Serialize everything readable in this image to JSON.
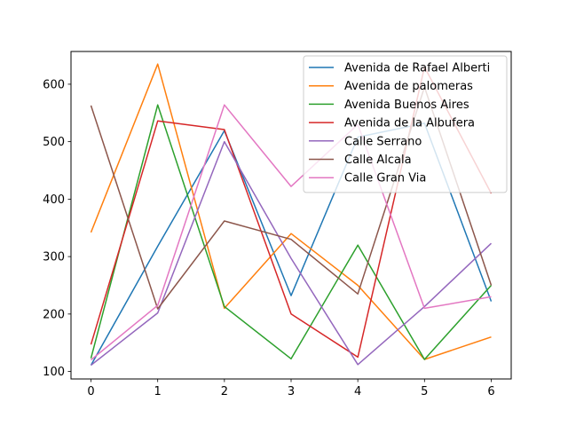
{
  "chart_data": {
    "type": "line",
    "title": "",
    "xlabel": "",
    "ylabel": "",
    "x": [
      0,
      1,
      2,
      3,
      4,
      5,
      6
    ],
    "xlim": [
      -0.3,
      6.3
    ],
    "ylim": [
      87,
      657
    ],
    "xticks": [
      0,
      1,
      2,
      3,
      4,
      5,
      6
    ],
    "yticks": [
      100,
      200,
      300,
      400,
      500,
      600
    ],
    "legend_position": "top-right",
    "grid": false,
    "series": [
      {
        "name": "Avenida de Rafael Alberti",
        "color": "#1f77b4",
        "values": [
          111,
          318,
          519,
          232,
          508,
          532,
          222
        ]
      },
      {
        "name": "Avenida de palomeras",
        "color": "#ff7f0e",
        "values": [
          342,
          635,
          210,
          340,
          250,
          121,
          160
        ]
      },
      {
        "name": "Avenida Buenos Aires",
        "color": "#2ca02c",
        "values": [
          123,
          564,
          213,
          122,
          320,
          121,
          250
        ]
      },
      {
        "name": "Avenida de la Albufera",
        "color": "#d62728",
        "values": [
          147,
          536,
          521,
          200,
          125,
          630,
          410
        ]
      },
      {
        "name": "Calle Serrano",
        "color": "#9467bd",
        "values": [
          111,
          202,
          500,
          297,
          112,
          213,
          323
        ]
      },
      {
        "name": "Calle Alcala",
        "color": "#8c564b",
        "values": [
          563,
          209,
          362,
          330,
          235,
          595,
          250
        ]
      },
      {
        "name": "Calle Gran Via",
        "color": "#e377c2",
        "values": [
          120,
          215,
          564,
          422,
          530,
          210,
          230
        ]
      }
    ]
  }
}
